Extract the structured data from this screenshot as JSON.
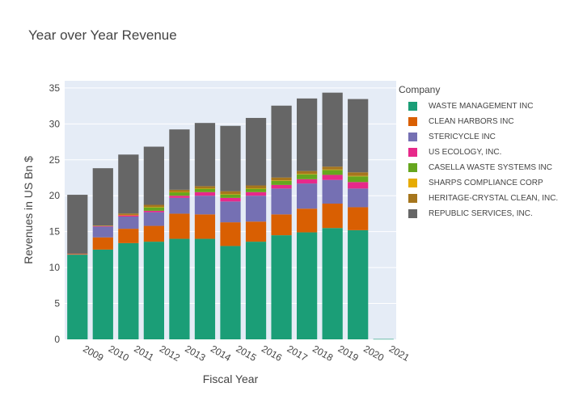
{
  "chart_data": {
    "type": "bar",
    "stacked": true,
    "title": "Year over Year Revenue",
    "xlabel": "Fiscal Year",
    "ylabel": "Revenues in US Bn $",
    "ylim": [
      0,
      36
    ],
    "yticks": [
      0,
      5,
      10,
      15,
      20,
      25,
      30,
      35
    ],
    "legend_title": "Company",
    "legend_position": "right",
    "categories": [
      "2009",
      "2010",
      "2011",
      "2012",
      "2013",
      "2014",
      "2015",
      "2016",
      "2017",
      "2018",
      "2019",
      "2020",
      "2021"
    ],
    "series": [
      {
        "name": "WASTE MANAGEMENT INC",
        "color": "#1b9e77",
        "values": [
          11.8,
          12.5,
          13.4,
          13.6,
          14.0,
          14.0,
          13.0,
          13.6,
          14.5,
          14.9,
          15.5,
          15.2,
          0.05
        ]
      },
      {
        "name": "CLEAN HARBORS INC",
        "color": "#d95f02",
        "values": [
          0,
          1.7,
          2.0,
          2.2,
          3.5,
          3.4,
          3.3,
          2.8,
          2.9,
          3.3,
          3.4,
          3.2,
          0
        ]
      },
      {
        "name": "STERICYCLE INC",
        "color": "#7570b3",
        "values": [
          0,
          1.5,
          1.7,
          1.9,
          2.2,
          2.6,
          2.9,
          3.6,
          3.6,
          3.5,
          3.3,
          2.6,
          0
        ]
      },
      {
        "name": "US ECOLOGY, INC.",
        "color": "#e7298a",
        "values": [
          0.1,
          0.1,
          0.2,
          0.2,
          0.3,
          0.5,
          0.5,
          0.5,
          0.5,
          0.6,
          0.7,
          0.9,
          0
        ]
      },
      {
        "name": "CASELLA WASTE SYSTEMS INC",
        "color": "#66a61e",
        "values": [
          0,
          0,
          0,
          0.5,
          0.5,
          0.5,
          0.5,
          0.5,
          0.6,
          0.7,
          0.7,
          0.8,
          0
        ]
      },
      {
        "name": "SHARPS COMPLIANCE CORP",
        "color": "#e6ab02",
        "values": [
          0.03,
          0.03,
          0.03,
          0.03,
          0.03,
          0.03,
          0.03,
          0.03,
          0.04,
          0.04,
          0.05,
          0.06,
          0
        ]
      },
      {
        "name": "HERITAGE-CRYSTAL CLEAN, INC.",
        "color": "#a6761d",
        "values": [
          0,
          0,
          0.2,
          0.3,
          0.3,
          0.3,
          0.4,
          0.4,
          0.4,
          0.4,
          0.4,
          0.5,
          0
        ]
      },
      {
        "name": "REPUBLIC SERVICES, INC.",
        "color": "#666666",
        "values": [
          8.2,
          8.0,
          8.2,
          8.1,
          8.4,
          8.8,
          9.1,
          9.4,
          10.0,
          10.1,
          10.3,
          10.2,
          0
        ]
      }
    ]
  }
}
